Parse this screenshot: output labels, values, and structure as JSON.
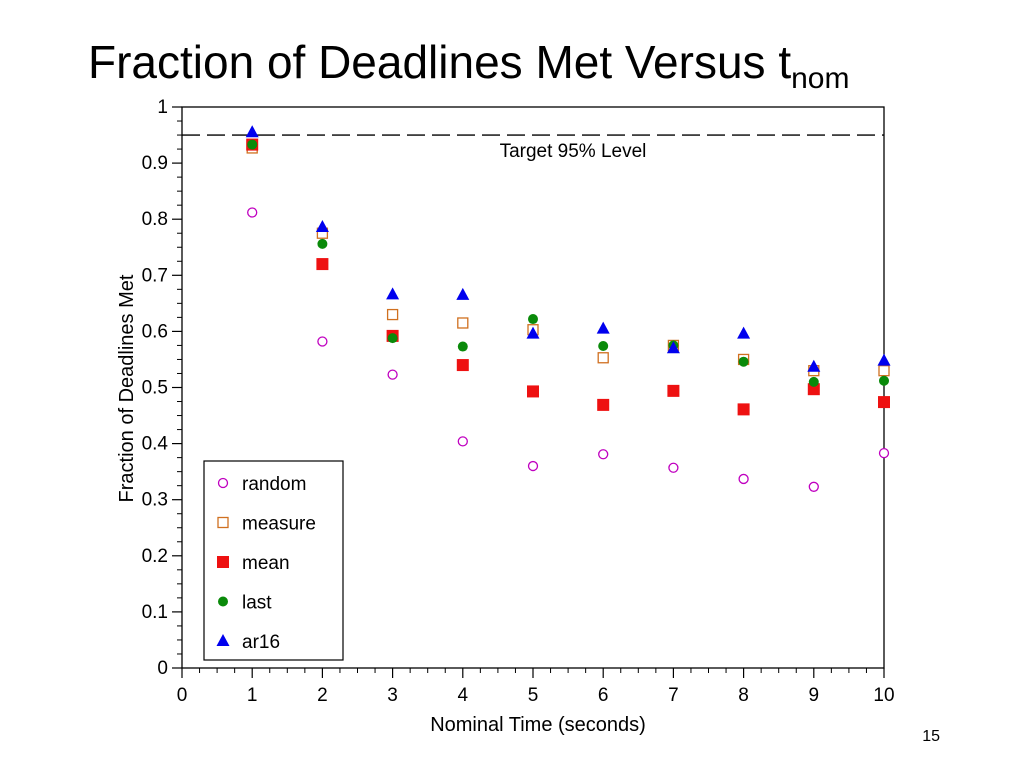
{
  "slide": {
    "title_main": "Fraction of Deadlines Met Versus t",
    "title_sub": "nom",
    "page_number": "15"
  },
  "chart_data": {
    "type": "scatter",
    "xlabel": "Nominal Time (seconds)",
    "ylabel": "Fraction of Deadlines Met",
    "xlim": [
      0,
      10
    ],
    "ylim": [
      0,
      1
    ],
    "x_ticks": [
      "0",
      "1",
      "2",
      "3",
      "4",
      "5",
      "6",
      "7",
      "8",
      "9",
      "10"
    ],
    "y_ticks": [
      "0",
      "0.1",
      "0.2",
      "0.3",
      "0.4",
      "0.5",
      "0.6",
      "0.7",
      "0.8",
      "0.9",
      "1"
    ],
    "grid": false,
    "legend_position": "bottom-left",
    "reference_line": {
      "y": 0.95,
      "label": "Target 95% Level",
      "style": "dashed"
    },
    "x": [
      1,
      2,
      3,
      4,
      5,
      6,
      7,
      8,
      9,
      10
    ],
    "series": [
      {
        "name": "random",
        "marker": "open-circle",
        "color": "#c000c0",
        "values": [
          0.812,
          0.582,
          0.523,
          0.404,
          0.36,
          0.381,
          0.357,
          0.337,
          0.323,
          0.383
        ]
      },
      {
        "name": "measure",
        "marker": "open-square",
        "color": "#d07020",
        "values": [
          0.927,
          0.775,
          0.63,
          0.615,
          0.603,
          0.553,
          0.575,
          0.55,
          0.53,
          0.53
        ]
      },
      {
        "name": "mean",
        "marker": "filled-square",
        "color": "#ee1111",
        "values": [
          0.933,
          0.72,
          0.592,
          0.54,
          0.493,
          0.469,
          0.494,
          0.461,
          0.497,
          0.474
        ]
      },
      {
        "name": "last",
        "marker": "filled-circle",
        "color": "#0a8a0a",
        "values": [
          0.933,
          0.756,
          0.588,
          0.573,
          0.622,
          0.574,
          0.575,
          0.546,
          0.51,
          0.512
        ]
      },
      {
        "name": "ar16",
        "marker": "filled-triangle",
        "color": "#0000ee",
        "values": [
          0.955,
          0.786,
          0.666,
          0.665,
          0.596,
          0.605,
          0.57,
          0.596,
          0.537,
          0.548
        ]
      }
    ]
  }
}
